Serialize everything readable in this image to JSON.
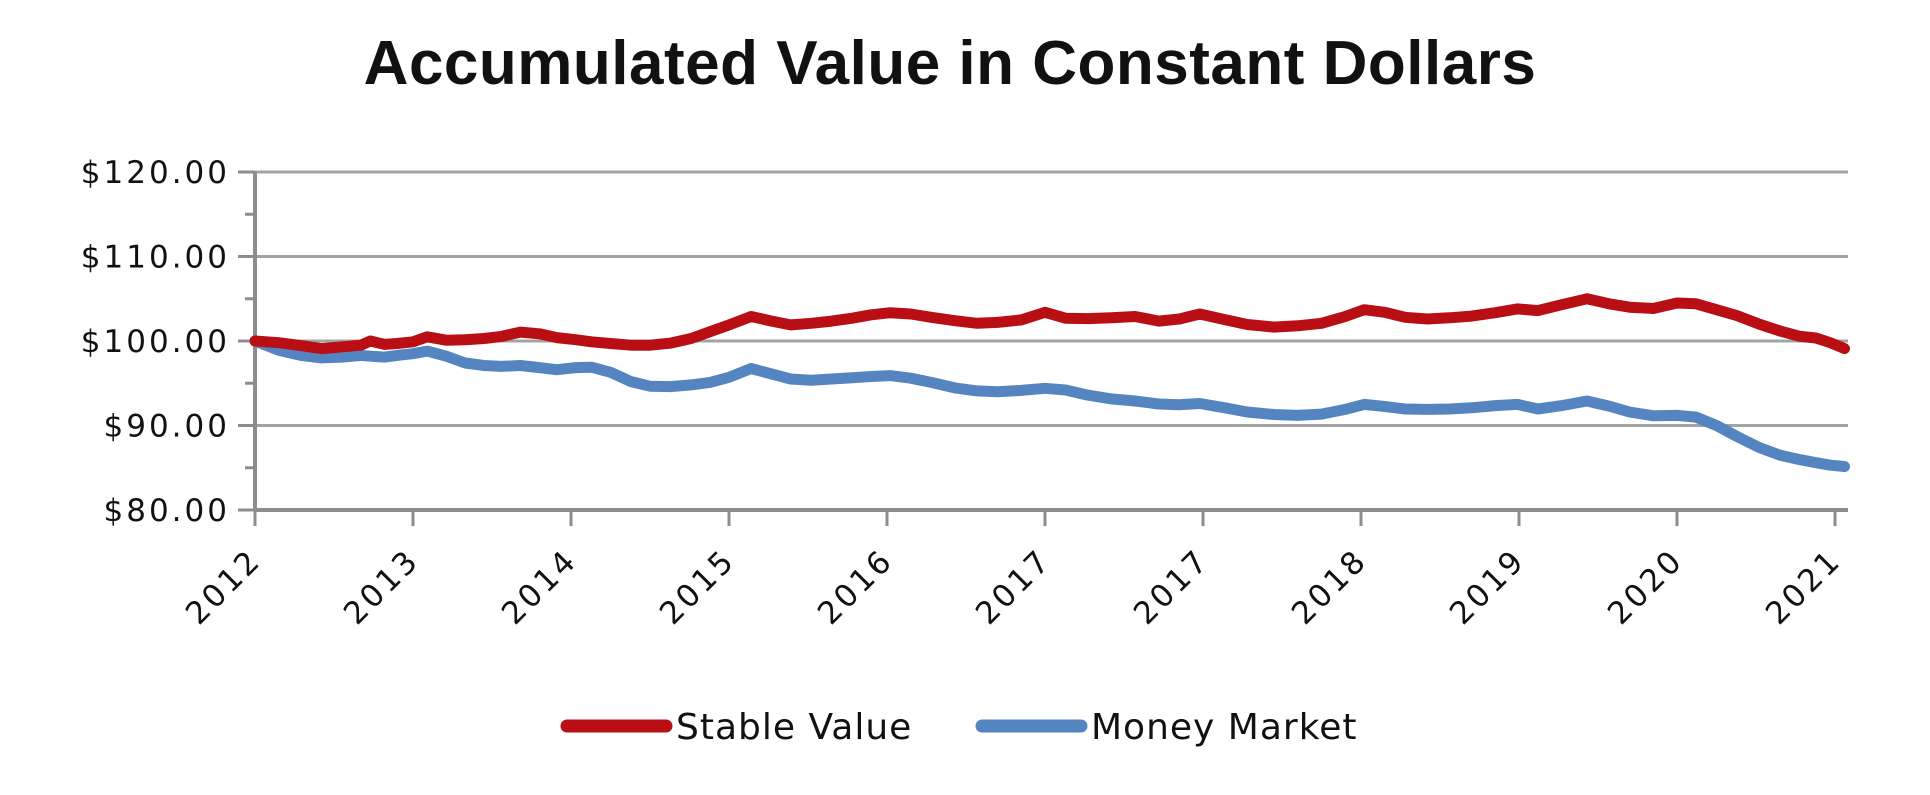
{
  "chart_data": {
    "type": "line",
    "title": "Accumulated Value in Constant Dollars",
    "x_tick_labels": [
      "2012",
      "2013",
      "2014",
      "2015",
      "2016",
      "2017",
      "2017",
      "2018",
      "2019",
      "2020",
      "2021"
    ],
    "y_tick_labels": [
      "$120.00",
      "$110.00",
      "$100.00",
      "$90.00",
      "$80.00"
    ],
    "y_tick_values": [
      120,
      110,
      100,
      90,
      80
    ],
    "y_minor_tick_values": [
      115,
      105,
      95,
      85
    ],
    "ylim": [
      80,
      120
    ],
    "grid": "horizontal-major",
    "legend_position": "bottom-center",
    "axis_color": "#8d8d8d",
    "grid_color": "#a3a3a3",
    "text_color": "#111111",
    "x_t": [
      0,
      0.15,
      0.29,
      0.42,
      0.55,
      0.67,
      0.73,
      0.82,
      0.9,
      1.0,
      1.09,
      1.21,
      1.33,
      1.45,
      1.56,
      1.68,
      1.8,
      1.91,
      2.03,
      2.13,
      2.25,
      2.38,
      2.5,
      2.63,
      2.76,
      2.88,
      3.0,
      3.14,
      3.27,
      3.39,
      3.52,
      3.65,
      3.78,
      3.9,
      4.02,
      4.15,
      4.28,
      4.43,
      4.57,
      4.7,
      4.85,
      5.0,
      5.13,
      5.27,
      5.42,
      5.57,
      5.72,
      5.85,
      5.98,
      6.12,
      6.28,
      6.45,
      6.6,
      6.75,
      6.9,
      7.02,
      7.15,
      7.28,
      7.42,
      7.56,
      7.7,
      7.85,
      7.99,
      8.12,
      8.27,
      8.43,
      8.57,
      8.7,
      8.85,
      9.0,
      9.12,
      9.25,
      9.38,
      9.52,
      9.65,
      9.78,
      9.88,
      9.97,
      10.06
    ],
    "series": [
      {
        "name": "Stable Value",
        "color": "#b90e14",
        "values": [
          100.0,
          99.8,
          99.45,
          99.1,
          99.3,
          99.5,
          100.0,
          99.6,
          99.7,
          99.9,
          100.5,
          100.1,
          100.15,
          100.3,
          100.55,
          101.05,
          100.85,
          100.4,
          100.15,
          99.9,
          99.7,
          99.5,
          99.5,
          99.75,
          100.3,
          101.1,
          101.9,
          102.9,
          102.35,
          101.9,
          102.1,
          102.35,
          102.7,
          103.1,
          103.35,
          103.2,
          102.8,
          102.4,
          102.1,
          102.2,
          102.5,
          103.4,
          102.7,
          102.65,
          102.75,
          102.9,
          102.35,
          102.6,
          103.2,
          102.6,
          101.95,
          101.65,
          101.8,
          102.1,
          102.9,
          103.7,
          103.4,
          102.8,
          102.6,
          102.75,
          102.95,
          103.35,
          103.8,
          103.6,
          104.3,
          105.0,
          104.4,
          104.0,
          103.85,
          104.5,
          104.4,
          103.7,
          103.0,
          102.0,
          101.2,
          100.55,
          100.35,
          99.8,
          99.1
        ]
      },
      {
        "name": "Money Market",
        "color": "#5585c0",
        "values": [
          100.0,
          98.9,
          98.3,
          98.0,
          98.1,
          98.3,
          98.2,
          98.1,
          98.3,
          98.5,
          98.8,
          98.2,
          97.4,
          97.1,
          97.0,
          97.1,
          96.85,
          96.6,
          96.85,
          96.9,
          96.3,
          95.2,
          94.65,
          94.6,
          94.8,
          95.1,
          95.7,
          96.75,
          96.1,
          95.5,
          95.35,
          95.5,
          95.65,
          95.8,
          95.9,
          95.6,
          95.1,
          94.45,
          94.1,
          94.0,
          94.15,
          94.4,
          94.2,
          93.6,
          93.15,
          92.9,
          92.55,
          92.45,
          92.6,
          92.15,
          91.6,
          91.3,
          91.2,
          91.35,
          91.9,
          92.5,
          92.25,
          91.95,
          91.9,
          91.95,
          92.1,
          92.35,
          92.5,
          91.95,
          92.35,
          92.9,
          92.3,
          91.6,
          91.15,
          91.2,
          91.0,
          90.0,
          88.7,
          87.4,
          86.5,
          85.95,
          85.6,
          85.3,
          85.15
        ]
      }
    ]
  }
}
